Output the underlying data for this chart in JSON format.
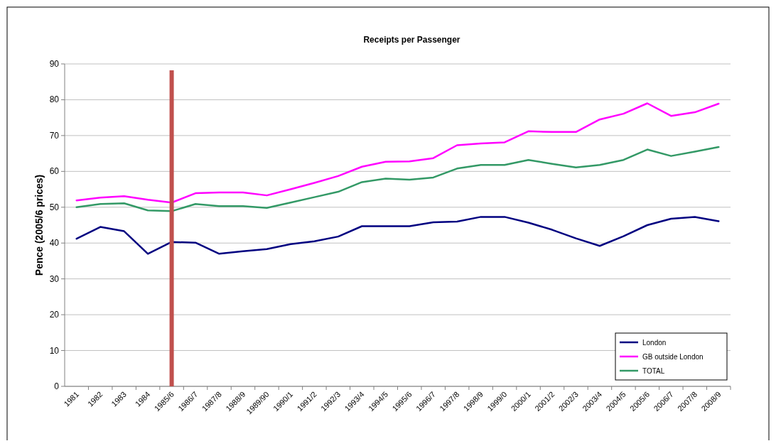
{
  "chart_data": {
    "type": "line",
    "title": "Receipts per Passenger",
    "ylabel": "Pence (2005/6 prices)",
    "categories": [
      "1981",
      "1982",
      "1983",
      "1984",
      "1985/6",
      "1986/7",
      "1987/8",
      "1988/9",
      "1989/90",
      "1990/1",
      "1991/2",
      "1992/3",
      "1993/4",
      "1994/5",
      "1995/6",
      "1996/7",
      "1997/8",
      "1998/9",
      "1999/0",
      "2000/1",
      "2001/2",
      "2002/3",
      "2003/4",
      "2004/5",
      "2005/6",
      "2006/7",
      "2007/8",
      "2008/9"
    ],
    "series": [
      {
        "name": "London",
        "color": "#000080",
        "values": [
          41.2,
          44.5,
          43.3,
          37.0,
          40.3,
          40.1,
          37.0,
          37.7,
          38.3,
          39.7,
          40.5,
          41.8,
          44.7,
          44.7,
          44.7,
          45.8,
          46.0,
          47.3,
          47.3,
          45.7,
          43.7,
          41.3,
          39.2,
          41.9,
          45.0,
          46.8,
          47.3,
          46.1
        ]
      },
      {
        "name": "GB outside London",
        "color": "#ff00ff",
        "values": [
          51.9,
          52.7,
          53.1,
          52.1,
          51.3,
          53.9,
          54.1,
          54.1,
          53.3,
          55.0,
          56.8,
          58.7,
          61.3,
          62.7,
          62.8,
          63.7,
          67.3,
          67.8,
          68.1,
          71.2,
          71.0,
          71.0,
          74.5,
          76.1,
          79.0,
          75.5,
          76.5,
          78.9
        ]
      },
      {
        "name": "TOTAL",
        "color": "#339966",
        "values": [
          50.0,
          50.9,
          51.1,
          49.1,
          48.9,
          50.9,
          50.3,
          50.3,
          49.8,
          51.3,
          52.8,
          54.3,
          57.0,
          58.0,
          57.7,
          58.3,
          60.8,
          61.8,
          61.8,
          63.2,
          62.1,
          61.1,
          61.8,
          63.2,
          66.1,
          64.3,
          65.5,
          66.8
        ]
      }
    ],
    "ylim": [
      0,
      90
    ],
    "yticks": [
      0,
      10,
      20,
      30,
      40,
      50,
      60,
      70,
      80,
      90
    ],
    "grid": "y",
    "legend": "bottom right",
    "marker": "none",
    "line_style": "solid",
    "ref_lines": [
      {
        "axis": "x",
        "value": "1985/6",
        "color": "#c0504d"
      }
    ]
  }
}
